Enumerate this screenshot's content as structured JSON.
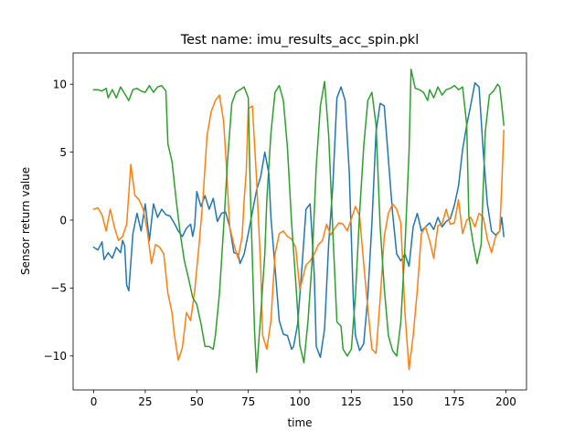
{
  "chart_data": {
    "type": "line",
    "title": "Test name: imu_results_acc_spin.pkl",
    "xlabel": "time",
    "ylabel": "Sensor return value",
    "xlim": [
      -10,
      210
    ],
    "ylim": [
      -12.5,
      12.3
    ],
    "xticks": [
      0,
      25,
      50,
      75,
      100,
      125,
      150,
      175,
      200
    ],
    "yticks": [
      -10,
      -5,
      0,
      5,
      10
    ],
    "ytick_labels": [
      "−10",
      "−5",
      "0",
      "5",
      "10"
    ],
    "grid": false,
    "legend": "none",
    "series": [
      {
        "color": "#1f77b4",
        "points": [
          [
            0,
            -2.0
          ],
          [
            2,
            -2.2
          ],
          [
            4,
            -1.6
          ],
          [
            5,
            -2.9
          ],
          [
            7,
            -2.4
          ],
          [
            9,
            -2.8
          ],
          [
            11,
            -2.0
          ],
          [
            13,
            -2.4
          ],
          [
            14,
            -1.5
          ],
          [
            15,
            -1.9
          ],
          [
            16,
            -4.8
          ],
          [
            17,
            -5.2
          ],
          [
            19,
            -1.0
          ],
          [
            21,
            0.5
          ],
          [
            23,
            -0.8
          ],
          [
            25,
            1.2
          ],
          [
            27,
            -1.5
          ],
          [
            29,
            1.2
          ],
          [
            31,
            0.2
          ],
          [
            33,
            0.8
          ],
          [
            35,
            0.4
          ],
          [
            37,
            0.3
          ],
          [
            39,
            -0.2
          ],
          [
            41,
            -0.8
          ],
          [
            43,
            -1.2
          ],
          [
            45,
            -0.6
          ],
          [
            47,
            -0.3
          ],
          [
            48,
            -1.2
          ],
          [
            49,
            -0.4
          ],
          [
            50,
            2.1
          ],
          [
            52,
            1.0
          ],
          [
            54,
            1.8
          ],
          [
            56,
            0.8
          ],
          [
            58,
            1.6
          ],
          [
            60,
            -0.1
          ],
          [
            62,
            0.5
          ],
          [
            64,
            0.6
          ],
          [
            66,
            -0.5
          ],
          [
            68,
            -2.4
          ],
          [
            70,
            -2.5
          ],
          [
            71,
            -3.2
          ],
          [
            73,
            -2.5
          ],
          [
            75,
            -1.0
          ],
          [
            77,
            0.6
          ],
          [
            79,
            2.2
          ],
          [
            81,
            3.2
          ],
          [
            83,
            5.0
          ],
          [
            85,
            3.4
          ],
          [
            86,
            0.2
          ],
          [
            88,
            -3.5
          ],
          [
            90,
            -7.4
          ],
          [
            92,
            -8.4
          ],
          [
            94,
            -8.5
          ],
          [
            96,
            -9.5
          ],
          [
            97,
            -9.3
          ],
          [
            99,
            -7.6
          ],
          [
            101,
            -3.5
          ],
          [
            103,
            0.8
          ],
          [
            105,
            1.2
          ],
          [
            107,
            -4.0
          ],
          [
            108,
            -9.3
          ],
          [
            110,
            -10.1
          ],
          [
            112,
            -8.0
          ],
          [
            114,
            -1.7
          ],
          [
            116,
            2.5
          ],
          [
            118,
            9.0
          ],
          [
            120,
            9.8
          ],
          [
            122,
            8.8
          ],
          [
            124,
            3.5
          ],
          [
            126,
            -6.0
          ],
          [
            127,
            -8.5
          ],
          [
            129,
            -9.6
          ],
          [
            131,
            -9.1
          ],
          [
            133,
            -5.6
          ],
          [
            135,
            -0.2
          ],
          [
            137,
            6.5
          ],
          [
            139,
            8.6
          ],
          [
            141,
            8.4
          ],
          [
            143,
            4.5
          ],
          [
            145,
            0.5
          ],
          [
            147,
            -2.5
          ],
          [
            149,
            -3.0
          ],
          [
            151,
            -2.5
          ],
          [
            153,
            -3.4
          ],
          [
            155,
            -0.5
          ],
          [
            157,
            0.5
          ],
          [
            159,
            -0.8
          ],
          [
            161,
            -0.5
          ],
          [
            163,
            -0.2
          ],
          [
            165,
            -0.7
          ],
          [
            167,
            0.2
          ],
          [
            169,
            -0.5
          ],
          [
            171,
            -0.1
          ],
          [
            173,
            0.1
          ],
          [
            175,
            1.1
          ],
          [
            177,
            2.5
          ],
          [
            179,
            5.2
          ],
          [
            181,
            7.0
          ],
          [
            183,
            8.5
          ],
          [
            185,
            10.1
          ],
          [
            187,
            9.8
          ],
          [
            189,
            5.0
          ],
          [
            191,
            1.2
          ],
          [
            193,
            -0.8
          ],
          [
            195,
            -1.1
          ],
          [
            197,
            -0.8
          ],
          [
            198,
            0.2
          ],
          [
            199,
            -1.2
          ]
        ]
      },
      {
        "color": "#ff7f0e",
        "points": [
          [
            0,
            0.8
          ],
          [
            2,
            0.9
          ],
          [
            4,
            0.4
          ],
          [
            6,
            -0.8
          ],
          [
            8,
            0.8
          ],
          [
            10,
            -0.5
          ],
          [
            12,
            -1.5
          ],
          [
            14,
            -1.2
          ],
          [
            16,
            -0.3
          ],
          [
            18,
            4.1
          ],
          [
            20,
            1.8
          ],
          [
            22,
            1.5
          ],
          [
            24,
            0.8
          ],
          [
            26,
            -0.8
          ],
          [
            28,
            -3.2
          ],
          [
            30,
            -1.8
          ],
          [
            32,
            -2.0
          ],
          [
            34,
            -2.5
          ],
          [
            36,
            -5.4
          ],
          [
            38,
            -6.8
          ],
          [
            39,
            -8.3
          ],
          [
            41,
            -10.3
          ],
          [
            43,
            -9.4
          ],
          [
            45,
            -6.8
          ],
          [
            47,
            -7.4
          ],
          [
            49,
            -5.2
          ],
          [
            51,
            -2.0
          ],
          [
            53,
            1.5
          ],
          [
            55,
            6.2
          ],
          [
            57,
            8.0
          ],
          [
            59,
            8.8
          ],
          [
            61,
            9.2
          ],
          [
            63,
            7.3
          ],
          [
            64,
            5.0
          ],
          [
            66,
            -0.5
          ],
          [
            68,
            -1.8
          ],
          [
            70,
            -2.8
          ],
          [
            72,
            -1.2
          ],
          [
            73,
            1.5
          ],
          [
            74,
            3.5
          ],
          [
            75,
            8.2
          ],
          [
            77,
            8.4
          ],
          [
            79,
            3.0
          ],
          [
            81,
            -3.5
          ],
          [
            82,
            -8.5
          ],
          [
            84,
            -9.5
          ],
          [
            86,
            -7.4
          ],
          [
            88,
            -2.5
          ],
          [
            90,
            -1.0
          ],
          [
            92,
            -0.8
          ],
          [
            94,
            -1.2
          ],
          [
            96,
            -1.4
          ],
          [
            98,
            -2.0
          ],
          [
            100,
            -5.1
          ],
          [
            101,
            -4.5
          ],
          [
            103,
            -3.3
          ],
          [
            105,
            -3.0
          ],
          [
            107,
            -2.5
          ],
          [
            109,
            -1.8
          ],
          [
            111,
            -1.5
          ],
          [
            113,
            -0.3
          ],
          [
            115,
            -1.1
          ],
          [
            117,
            -0.6
          ],
          [
            119,
            -0.2
          ],
          [
            121,
            -0.3
          ],
          [
            123,
            -0.8
          ],
          [
            125,
            0.1
          ],
          [
            127,
            1.0
          ],
          [
            129,
            0.3
          ],
          [
            131,
            -3.2
          ],
          [
            133,
            -6.5
          ],
          [
            135,
            -9.5
          ],
          [
            137,
            -9.8
          ],
          [
            139,
            -5.8
          ],
          [
            141,
            -1.2
          ],
          [
            143,
            0.5
          ],
          [
            145,
            1.2
          ],
          [
            147,
            0.8
          ],
          [
            149,
            -0.2
          ],
          [
            151,
            -6.8
          ],
          [
            153,
            -11.0
          ],
          [
            155,
            -8.5
          ],
          [
            157,
            -5.2
          ],
          [
            159,
            -1.0
          ],
          [
            161,
            -0.5
          ],
          [
            163,
            -1.5
          ],
          [
            165,
            -2.8
          ],
          [
            167,
            -0.4
          ],
          [
            169,
            -0.3
          ],
          [
            171,
            0.8
          ],
          [
            173,
            -0.3
          ],
          [
            175,
            -0.2
          ],
          [
            177,
            1.5
          ],
          [
            179,
            -1.0
          ],
          [
            181,
            0.0
          ],
          [
            183,
            0.2
          ],
          [
            185,
            -0.5
          ],
          [
            187,
            0.5
          ],
          [
            189,
            0.2
          ],
          [
            191,
            -1.4
          ],
          [
            193,
            -2.4
          ],
          [
            195,
            -1.2
          ],
          [
            197,
            -0.8
          ],
          [
            198,
            2.5
          ],
          [
            199,
            6.6
          ]
        ]
      },
      {
        "color": "#2ca02c",
        "points": [
          [
            0,
            9.6
          ],
          [
            2,
            9.6
          ],
          [
            4,
            9.5
          ],
          [
            6,
            9.7
          ],
          [
            7,
            9.0
          ],
          [
            9,
            9.6
          ],
          [
            11,
            9.0
          ],
          [
            13,
            9.8
          ],
          [
            15,
            9.3
          ],
          [
            17,
            8.8
          ],
          [
            19,
            9.6
          ],
          [
            21,
            9.7
          ],
          [
            23,
            9.5
          ],
          [
            25,
            9.4
          ],
          [
            27,
            9.9
          ],
          [
            29,
            9.4
          ],
          [
            31,
            9.8
          ],
          [
            33,
            9.9
          ],
          [
            35,
            9.5
          ],
          [
            36,
            5.6
          ],
          [
            38,
            4.3
          ],
          [
            40,
            1.5
          ],
          [
            42,
            -1.0
          ],
          [
            44,
            -3.0
          ],
          [
            46,
            -4.3
          ],
          [
            48,
            -5.7
          ],
          [
            50,
            -6.2
          ],
          [
            52,
            -7.6
          ],
          [
            54,
            -9.3
          ],
          [
            56,
            -9.3
          ],
          [
            58,
            -9.5
          ],
          [
            59,
            -8.5
          ],
          [
            61,
            -5.4
          ],
          [
            63,
            -0.6
          ],
          [
            65,
            4.5
          ],
          [
            67,
            8.6
          ],
          [
            69,
            9.4
          ],
          [
            71,
            9.6
          ],
          [
            73,
            9.8
          ],
          [
            75,
            9.0
          ],
          [
            76,
            2.0
          ],
          [
            78,
            -8.0
          ],
          [
            79,
            -11.2
          ],
          [
            81,
            -7.0
          ],
          [
            83,
            -2.5
          ],
          [
            84,
            1.5
          ],
          [
            86,
            6.4
          ],
          [
            88,
            9.4
          ],
          [
            90,
            9.9
          ],
          [
            92,
            8.8
          ],
          [
            94,
            5.3
          ],
          [
            96,
            -0.2
          ],
          [
            98,
            -4.5
          ],
          [
            100,
            -9.2
          ],
          [
            102,
            -10.5
          ],
          [
            104,
            -7.4
          ],
          [
            106,
            -3.0
          ],
          [
            108,
            4.0
          ],
          [
            110,
            8.4
          ],
          [
            112,
            10.2
          ],
          [
            114,
            6.2
          ],
          [
            116,
            -0.8
          ],
          [
            118,
            -7.5
          ],
          [
            120,
            -7.8
          ],
          [
            121,
            -9.5
          ],
          [
            123,
            -10.0
          ],
          [
            125,
            -9.5
          ],
          [
            127,
            -5.5
          ],
          [
            129,
            0.5
          ],
          [
            131,
            5.4
          ],
          [
            133,
            8.8
          ],
          [
            135,
            9.4
          ],
          [
            137,
            7.0
          ],
          [
            139,
            -0.5
          ],
          [
            141,
            -5.0
          ],
          [
            143,
            -8.5
          ],
          [
            145,
            -9.6
          ],
          [
            147,
            -10.0
          ],
          [
            149,
            -7.5
          ],
          [
            151,
            -2.0
          ],
          [
            153,
            5.0
          ],
          [
            154,
            11.1
          ],
          [
            156,
            9.7
          ],
          [
            158,
            9.6
          ],
          [
            160,
            9.4
          ],
          [
            162,
            8.8
          ],
          [
            163,
            9.6
          ],
          [
            165,
            9.0
          ],
          [
            167,
            9.8
          ],
          [
            169,
            9.2
          ],
          [
            171,
            9.6
          ],
          [
            173,
            9.7
          ],
          [
            175,
            9.9
          ],
          [
            177,
            9.6
          ],
          [
            179,
            9.8
          ],
          [
            181,
            7.0
          ],
          [
            182,
            0.3
          ],
          [
            184,
            -1.6
          ],
          [
            186,
            -3.2
          ],
          [
            188,
            -1.8
          ],
          [
            190,
            6.5
          ],
          [
            192,
            9.2
          ],
          [
            194,
            9.5
          ],
          [
            196,
            10.0
          ],
          [
            197,
            9.8
          ],
          [
            198,
            8.5
          ],
          [
            199,
            7.0
          ]
        ]
      }
    ]
  }
}
